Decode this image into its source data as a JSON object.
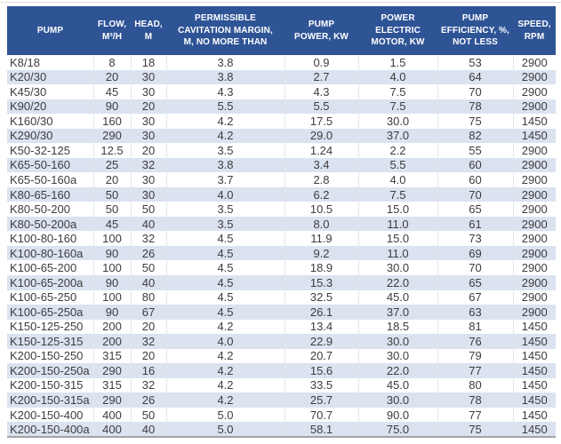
{
  "colors": {
    "header_bg": "#2f5496",
    "header_text": "#ffffff",
    "row_bg": "#ffffff",
    "row_alt_bg": "#dbe2f0",
    "cell_text": "#3d3d3d"
  },
  "table": {
    "columns": [
      {
        "id": "pump",
        "label": "PUMP"
      },
      {
        "id": "flow",
        "label": "FLOW,\nM³/H"
      },
      {
        "id": "head",
        "label": "HEAD,\nM"
      },
      {
        "id": "cavitation_margin",
        "label": "PERMISSIBLE\nCAVITATION MARGIN,\nM, NO MORE THAN"
      },
      {
        "id": "pump_power",
        "label": "PUMP\nPOWER, KW"
      },
      {
        "id": "motor_power",
        "label": "POWER\nELECTRIC\nMOTOR, KW"
      },
      {
        "id": "efficiency",
        "label": "PUMP\nEFFICIENCY, %,\nNOT LESS"
      },
      {
        "id": "speed",
        "label": "SPEED,\nRPM"
      }
    ],
    "rows": [
      [
        "K8/18",
        "8",
        "18",
        "3.8",
        "0.9",
        "1.5",
        "53",
        "2900"
      ],
      [
        "K20/30",
        "20",
        "30",
        "3.8",
        "2.7",
        "4.0",
        "64",
        "2900"
      ],
      [
        "K45/30",
        "45",
        "30",
        "4.3",
        "4.3",
        "7.5",
        "70",
        "2900"
      ],
      [
        "K90/20",
        "90",
        "20",
        "5.5",
        "5.5",
        "7.5",
        "78",
        "2900"
      ],
      [
        "K160/30",
        "160",
        "30",
        "4.2",
        "17.5",
        "30.0",
        "75",
        "1450"
      ],
      [
        "K290/30",
        "290",
        "30",
        "4.2",
        "29.0",
        "37.0",
        "82",
        "1450"
      ],
      [
        "K50-32-125",
        "12.5",
        "20",
        "3.5",
        "1.24",
        "2.2",
        "55",
        "2900"
      ],
      [
        "K65-50-160",
        "25",
        "32",
        "3.8",
        "3.4",
        "5.5",
        "60",
        "2900"
      ],
      [
        "K65-50-160a",
        "20",
        "30",
        "3.7",
        "2.8",
        "4.0",
        "60",
        "2900"
      ],
      [
        "K80-65-160",
        "50",
        "30",
        "4.0",
        "6.2",
        "7.5",
        "70",
        "2900"
      ],
      [
        "K80-50-200",
        "50",
        "50",
        "3.5",
        "10.5",
        "15.0",
        "65",
        "2900"
      ],
      [
        "K80-50-200a",
        "45",
        "40",
        "3.5",
        "8.0",
        "11.0",
        "61",
        "2900"
      ],
      [
        "K100-80-160",
        "100",
        "32",
        "4.5",
        "11.9",
        "15.0",
        "73",
        "2900"
      ],
      [
        "K100-80-160a",
        "90",
        "26",
        "4.5",
        "9.2",
        "11.0",
        "69",
        "2900"
      ],
      [
        "K100-65-200",
        "100",
        "50",
        "4.5",
        "18.9",
        "30.0",
        "70",
        "2900"
      ],
      [
        "K100-65-200a",
        "90",
        "40",
        "4.5",
        "15.3",
        "22.0",
        "65",
        "2900"
      ],
      [
        "K100-65-250",
        "100",
        "80",
        "4.5",
        "32.5",
        "45.0",
        "67",
        "2900"
      ],
      [
        "K100-65-250a",
        "90",
        "67",
        "4.5",
        "26.1",
        "37.0",
        "63",
        "2900"
      ],
      [
        "K150-125-250",
        "200",
        "20",
        "4.2",
        "13.4",
        "18.5",
        "81",
        "1450"
      ],
      [
        "K150-125-315",
        "200",
        "32",
        "4.0",
        "22.9",
        "30.0",
        "76",
        "1450"
      ],
      [
        "K200-150-250",
        "315",
        "20",
        "4.2",
        "20.7",
        "30.0",
        "79",
        "1450"
      ],
      [
        "K200-150-250a",
        "290",
        "16",
        "4.2",
        "15.6",
        "22.0",
        "77",
        "1450"
      ],
      [
        "K200-150-315",
        "315",
        "32",
        "4.2",
        "33.5",
        "45.0",
        "80",
        "1450"
      ],
      [
        "K200-150-315a",
        "290",
        "26",
        "4.2",
        "25.7",
        "30.0",
        "78",
        "1450"
      ],
      [
        "K200-150-400",
        "400",
        "50",
        "5.0",
        "70.7",
        "90.0",
        "77",
        "1450"
      ],
      [
        "K200-150-400a",
        "400",
        "40",
        "5.0",
        "58.1",
        "75.0",
        "75",
        "1450"
      ]
    ]
  },
  "chart_data": {
    "type": "table",
    "title": "Pump specifications",
    "columns": [
      "PUMP",
      "FLOW, M³/H",
      "HEAD, M",
      "PERMISSIBLE CAVITATION MARGIN, M, NO MORE THAN",
      "PUMP POWER, KW",
      "POWER ELECTRIC MOTOR, KW",
      "PUMP EFFICIENCY, %, NOT LESS",
      "SPEED, RPM"
    ],
    "rows": [
      [
        "K8/18",
        8,
        18,
        3.8,
        0.9,
        1.5,
        53,
        2900
      ],
      [
        "K20/30",
        20,
        30,
        3.8,
        2.7,
        4.0,
        64,
        2900
      ],
      [
        "K45/30",
        45,
        30,
        4.3,
        4.3,
        7.5,
        70,
        2900
      ],
      [
        "K90/20",
        90,
        20,
        5.5,
        5.5,
        7.5,
        78,
        2900
      ],
      [
        "K160/30",
        160,
        30,
        4.2,
        17.5,
        30.0,
        75,
        1450
      ],
      [
        "K290/30",
        290,
        30,
        4.2,
        29.0,
        37.0,
        82,
        1450
      ],
      [
        "K50-32-125",
        12.5,
        20,
        3.5,
        1.24,
        2.2,
        55,
        2900
      ],
      [
        "K65-50-160",
        25,
        32,
        3.8,
        3.4,
        5.5,
        60,
        2900
      ],
      [
        "K65-50-160a",
        20,
        30,
        3.7,
        2.8,
        4.0,
        60,
        2900
      ],
      [
        "K80-65-160",
        50,
        30,
        4.0,
        6.2,
        7.5,
        70,
        2900
      ],
      [
        "K80-50-200",
        50,
        50,
        3.5,
        10.5,
        15.0,
        65,
        2900
      ],
      [
        "K80-50-200a",
        45,
        40,
        3.5,
        8.0,
        11.0,
        61,
        2900
      ],
      [
        "K100-80-160",
        100,
        32,
        4.5,
        11.9,
        15.0,
        73,
        2900
      ],
      [
        "K100-80-160a",
        90,
        26,
        4.5,
        9.2,
        11.0,
        69,
        2900
      ],
      [
        "K100-65-200",
        100,
        50,
        4.5,
        18.9,
        30.0,
        70,
        2900
      ],
      [
        "K100-65-200a",
        90,
        40,
        4.5,
        15.3,
        22.0,
        65,
        2900
      ],
      [
        "K100-65-250",
        100,
        80,
        4.5,
        32.5,
        45.0,
        67,
        2900
      ],
      [
        "K100-65-250a",
        90,
        67,
        4.5,
        26.1,
        37.0,
        63,
        2900
      ],
      [
        "K150-125-250",
        200,
        20,
        4.2,
        13.4,
        18.5,
        81,
        1450
      ],
      [
        "K150-125-315",
        200,
        32,
        4.0,
        22.9,
        30.0,
        76,
        1450
      ],
      [
        "K200-150-250",
        315,
        20,
        4.2,
        20.7,
        30.0,
        79,
        1450
      ],
      [
        "K200-150-250a",
        290,
        16,
        4.2,
        15.6,
        22.0,
        77,
        1450
      ],
      [
        "K200-150-315",
        315,
        32,
        4.2,
        33.5,
        45.0,
        80,
        1450
      ],
      [
        "K200-150-315a",
        290,
        26,
        4.2,
        25.7,
        30.0,
        78,
        1450
      ],
      [
        "K200-150-400",
        400,
        50,
        5.0,
        70.7,
        90.0,
        77,
        1450
      ],
      [
        "K200-150-400a",
        400,
        40,
        5.0,
        58.1,
        75.0,
        75,
        1450
      ]
    ]
  }
}
